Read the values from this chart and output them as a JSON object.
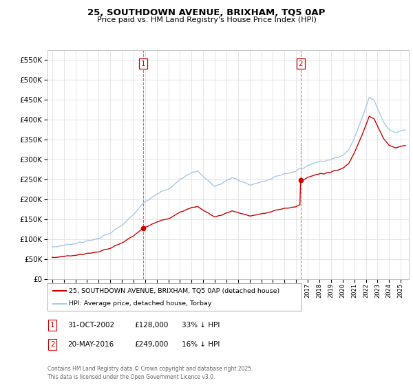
{
  "title": "25, SOUTHDOWN AVENUE, BRIXHAM, TQ5 0AP",
  "subtitle": "Price paid vs. HM Land Registry's House Price Index (HPI)",
  "legend_line1": "25, SOUTHDOWN AVENUE, BRIXHAM, TQ5 0AP (detached house)",
  "legend_line2": "HPI: Average price, detached house, Torbay",
  "sale1_date_str": "31-OCT-2002",
  "sale1_price": 128000,
  "sale1_hpi_pct": "33% ↓ HPI",
  "sale2_date_str": "20-MAY-2016",
  "sale2_price": 249000,
  "sale2_hpi_pct": "16% ↓ HPI",
  "footer": "Contains HM Land Registry data © Crown copyright and database right 2025.\nThis data is licensed under the Open Government Licence v3.0.",
  "ylim_min": 0,
  "ylim_max": 575000,
  "hpi_color": "#a8c8e8",
  "price_color": "#cc0000",
  "sale1_x": 2002.83,
  "sale2_x": 2016.38,
  "bg_color": "#ffffff",
  "grid_color": "#e0e0e0",
  "yticks": [
    0,
    50000,
    100000,
    150000,
    200000,
    250000,
    300000,
    350000,
    400000,
    450000,
    500000,
    550000
  ]
}
